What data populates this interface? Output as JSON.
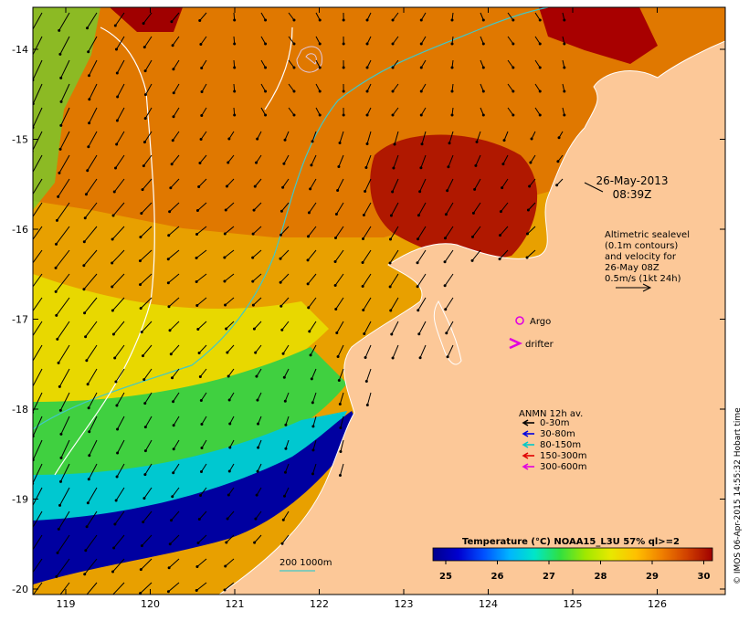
{
  "header": {
    "date": "26-May-2013",
    "time": "08:39Z"
  },
  "altimetry_note": {
    "lines": [
      "Altimetric sealevel",
      "(0.1m contours)",
      "and velocity for",
      "26-May 08Z",
      "0.5m/s (1kt 24h)"
    ]
  },
  "markers": {
    "argo_label": "Argo",
    "drifter_label": "drifter",
    "argo_color": "#e000e0",
    "drifter_color": "#e000e0"
  },
  "mooring_legend": {
    "title": "ANMN 12h av.",
    "items": [
      {
        "label": "0-30m",
        "color": "#000000"
      },
      {
        "label": "30-80m",
        "color": "#0000e0"
      },
      {
        "label": "80-150m",
        "color": "#00c8c8"
      },
      {
        "label": "150-300m",
        "color": "#e00000"
      },
      {
        "label": "300-600m",
        "color": "#e000e0"
      }
    ]
  },
  "bathymetry_label": "200  1000m",
  "colorbar": {
    "title": "Temperature (°C) NOAA15_L3U 57% ql>=2",
    "ticks": [
      "25",
      "26",
      "27",
      "28",
      "29",
      "30"
    ],
    "colors": [
      "#00008c",
      "#0000d0",
      "#0050ff",
      "#00b4ff",
      "#00e6c8",
      "#30e040",
      "#a0e800",
      "#e8e800",
      "#ffc000",
      "#f08000",
      "#d04000",
      "#a00000"
    ]
  },
  "axes": {
    "lon_labels": [
      "119",
      "120",
      "121",
      "122",
      "123",
      "124",
      "125",
      "126"
    ],
    "lat_labels": [
      "-14",
      "-15",
      "-16",
      "-17",
      "-18",
      "-19",
      "-20"
    ]
  },
  "credit": "© IMOS 06-Apr-2015 14:55:32 Hobart time",
  "colors": {
    "land": "#fcc898",
    "coast": "#ffffff",
    "contour_200": "#40c8c8",
    "contour_1000": "#ffffff"
  }
}
